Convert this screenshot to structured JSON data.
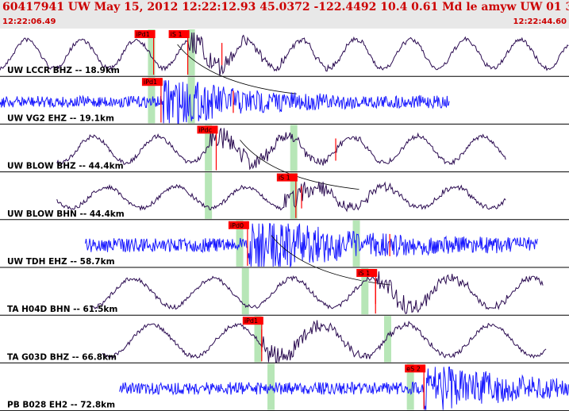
{
  "header": {
    "title": "60417941 UW May 15, 2012 12:22:12.93    45.0372 -122.4492 10.4 0.61 Md le amyw UW 01    3",
    "start_time": "12:22:06.49",
    "end_time": "12:22:44.60"
  },
  "colors": {
    "header_text": "#cc0000",
    "pick": "#ff0000",
    "window": "#b7e6b7",
    "velocity": "#1a1aff",
    "displacement": "#2a0a50"
  },
  "picks_color_note": "",
  "traces": [
    {
      "label": "UW LCCR BHZ -- 18.9km",
      "color": "#2a0a50",
      "kind": "long",
      "t_start": 0,
      "t_end": 1,
      "amp": 0.55,
      "burst_at": 0.33,
      "windows": [
        0.26,
        0.33
      ],
      "picks": [
        {
          "text": "iPd1",
          "t": 0.27
        },
        {
          "text": "iS 1",
          "t": 0.33
        }
      ],
      "tick_at": 0.39
    },
    {
      "label": "UW VG2 EHZ -- 19.1km",
      "color": "#1a1aff",
      "kind": "noisy",
      "t_start": 0,
      "t_end": 0.79,
      "amp": 0.12,
      "burst_at": 0.285,
      "windows": [
        0.26,
        0.33
      ],
      "picks": [
        {
          "text": "iPd1",
          "t": 0.283
        }
      ],
      "tick_at": 0.41
    },
    {
      "label": "UW BLOW BHZ -- 44.4km",
      "color": "#2a0a50",
      "kind": "long",
      "t_start": 0.1,
      "t_end": 0.89,
      "amp": 0.5,
      "burst_at": 0.37,
      "windows": [
        0.36,
        0.51
      ],
      "picks": [
        {
          "text": "iPdc",
          "t": 0.38
        }
      ],
      "tick_at": 0.59
    },
    {
      "label": "UW BLOW BHN -- 44.4km",
      "color": "#2a0a50",
      "kind": "long",
      "t_start": 0.1,
      "t_end": 0.89,
      "amp": 0.4,
      "burst_at": 0.5,
      "windows": [
        0.36,
        0.51
      ],
      "picks": [
        {
          "text": "iS 1",
          "t": 0.52
        }
      ],
      "tick_at": 0.53
    },
    {
      "label": "UW TDH EHZ -- 58.7km",
      "color": "#1a1aff",
      "kind": "noisy",
      "t_start": 0.15,
      "t_end": 0.945,
      "amp": 0.15,
      "burst_at": 0.435,
      "windows": [
        0.415,
        0.62
      ],
      "picks": [
        {
          "text": "iPd0",
          "t": 0.435
        }
      ],
      "tick_at": 0.685
    },
    {
      "label": "TA H04D BHN -- 61.5km",
      "color": "#2a0a50",
      "kind": "long",
      "t_start": 0.16,
      "t_end": 0.955,
      "amp": 0.55,
      "burst_at": 0.66,
      "windows": [
        0.425,
        0.635
      ],
      "picks": [
        {
          "text": "iS 1",
          "t": 0.66
        }
      ],
      "tick_at": 0.66
    },
    {
      "label": "TA G03D BHZ -- 66.8km",
      "color": "#2a0a50",
      "kind": "long",
      "t_start": 0.18,
      "t_end": 0.96,
      "amp": 0.6,
      "burst_at": 0.46,
      "windows": [
        0.447,
        0.675
      ],
      "picks": [
        {
          "text": "iPd1",
          "t": 0.46
        }
      ],
      "tick_at": 0.46
    },
    {
      "label": "PB B028 EH2 -- 72.8km",
      "color": "#1a1aff",
      "kind": "noisy",
      "t_start": 0.21,
      "t_end": 1,
      "amp": 0.13,
      "burst_at": 0.745,
      "windows": [
        0.47,
        0.715
      ],
      "picks": [
        {
          "text": "eS 2",
          "t": 0.745
        }
      ],
      "tick_at": 0.745
    }
  ]
}
